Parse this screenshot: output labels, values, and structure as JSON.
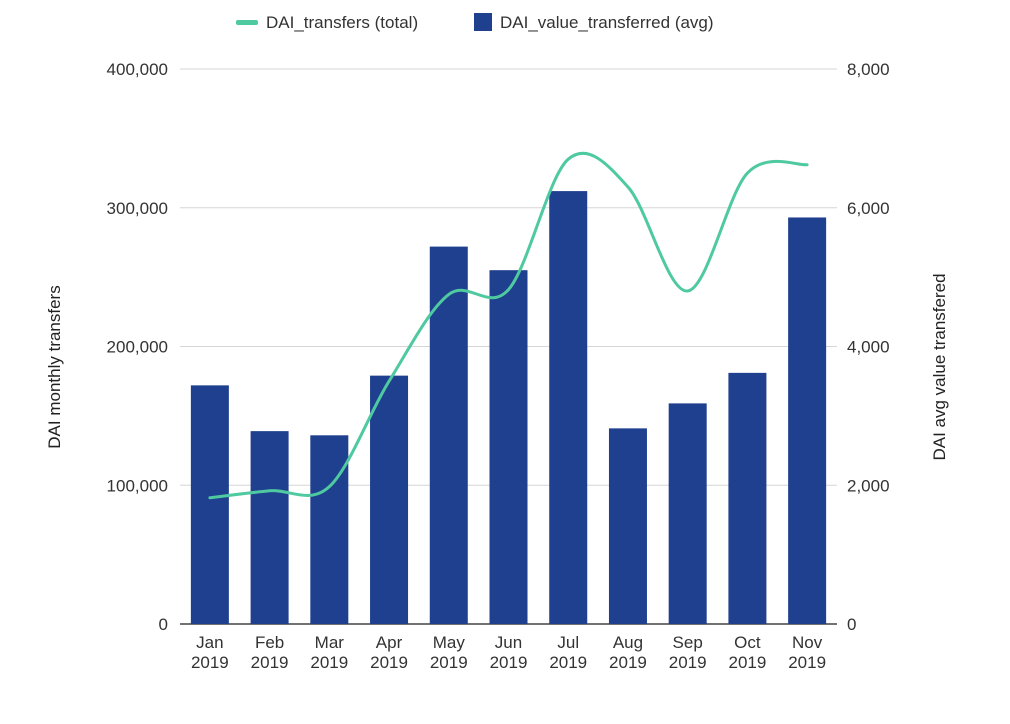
{
  "chart_data": {
    "type": "bar",
    "categories": [
      [
        "Jan",
        "2019"
      ],
      [
        "Feb",
        "2019"
      ],
      [
        "Mar",
        "2019"
      ],
      [
        "Apr",
        "2019"
      ],
      [
        "May",
        "2019"
      ],
      [
        "Jun",
        "2019"
      ],
      [
        "Jul",
        "2019"
      ],
      [
        "Aug",
        "2019"
      ],
      [
        "Sep",
        "2019"
      ],
      [
        "Oct",
        "2019"
      ],
      [
        "Nov",
        "2019"
      ]
    ],
    "series": [
      {
        "name": "DAI_value_transferred (avg)",
        "type": "bar",
        "axis": "left",
        "color": "#1f3f8f",
        "values": [
          172000,
          139000,
          136000,
          179000,
          272000,
          255000,
          312000,
          141000,
          159000,
          181000,
          293000
        ]
      },
      {
        "name": "DAI_transfers (total)",
        "type": "line",
        "axis": "right",
        "color": "#4fc9a0",
        "values": [
          1820,
          1920,
          1980,
          3500,
          4750,
          4820,
          6700,
          6300,
          4800,
          6500,
          6620
        ]
      }
    ],
    "left_axis": {
      "label": "DAI monthly transfers",
      "range": [
        0,
        400000
      ],
      "ticks": [
        "0",
        "100,000",
        "200,000",
        "300,000",
        "400,000"
      ],
      "tick_values": [
        0,
        100000,
        200000,
        300000,
        400000
      ]
    },
    "right_axis": {
      "label": "DAI avg value transfered",
      "range": [
        0,
        8000
      ],
      "ticks": [
        "0",
        "2,000",
        "4,000",
        "6,000",
        "8,000"
      ],
      "tick_values": [
        0,
        2000,
        4000,
        6000,
        8000
      ]
    },
    "grid": true,
    "legend": "top-center"
  }
}
